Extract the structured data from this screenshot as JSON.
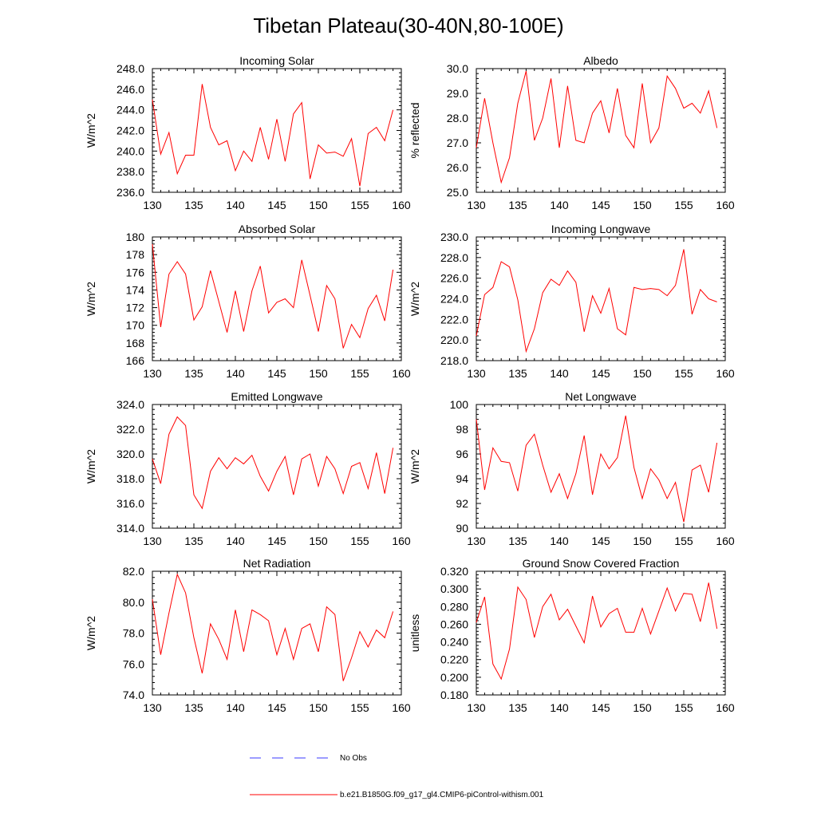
{
  "figure": {
    "title": "Tibetan Plateau(30-40N,80-100E)"
  },
  "colors": {
    "model_line": "#ff0000",
    "obs_line": "#3a3aff",
    "axis": "#000000"
  },
  "legend": {
    "entries": [
      {
        "label": "No Obs",
        "style": "dashed",
        "color": "#3a3aff"
      },
      {
        "label": "b.e21.B1850G.f09_g17_gl4.CMIP6-piControl-withism.001",
        "style": "solid",
        "color": "#ff0000"
      }
    ]
  },
  "chart_data": [
    {
      "type": "line",
      "title": "Incoming Solar",
      "ylabel": "W/m^2",
      "xlabel": "",
      "xlim": [
        130,
        160
      ],
      "ylim": [
        236,
        248
      ],
      "xticks": [
        "130",
        "135",
        "140",
        "145",
        "150",
        "155",
        "160"
      ],
      "yticks": [
        "236.0",
        "238.0",
        "240.0",
        "242.0",
        "244.0",
        "246.0",
        "248.0"
      ],
      "series": [
        {
          "name": "b.e21.B1850G.f09_g17_gl4.CMIP6-piControl-withism.001",
          "x": [
            130,
            131,
            132,
            133,
            134,
            135,
            136,
            137,
            138,
            139,
            140,
            141,
            142,
            143,
            144,
            145,
            146,
            147,
            148,
            149,
            150,
            151,
            152,
            153,
            154,
            155,
            156,
            157,
            158,
            159
          ],
          "values": [
            245.0,
            239.7,
            241.8,
            237.8,
            239.6,
            239.6,
            246.5,
            242.3,
            240.6,
            241.0,
            238.1,
            240.0,
            239.0,
            242.3,
            239.2,
            243.1,
            239.0,
            243.6,
            244.7,
            237.3,
            240.6,
            239.8,
            239.9,
            239.5,
            241.2,
            236.6,
            241.7,
            242.3,
            241.0,
            244.0
          ]
        }
      ]
    },
    {
      "type": "line",
      "title": "Albedo",
      "ylabel": "% reflected",
      "xlabel": "",
      "xlim": [
        130,
        160
      ],
      "ylim": [
        25,
        30
      ],
      "xticks": [
        "130",
        "135",
        "140",
        "145",
        "150",
        "155",
        "160"
      ],
      "yticks": [
        "25.0",
        "26.0",
        "27.0",
        "28.0",
        "29.0",
        "30.0"
      ],
      "series": [
        {
          "name": "b.e21.B1850G.f09_g17_gl4.CMIP6-piControl-withism.001",
          "x": [
            130,
            131,
            132,
            133,
            134,
            135,
            136,
            137,
            138,
            139,
            140,
            141,
            142,
            143,
            144,
            145,
            146,
            147,
            148,
            149,
            150,
            151,
            152,
            153,
            154,
            155,
            156,
            157,
            158,
            159
          ],
          "values": [
            26.8,
            28.8,
            27.0,
            25.4,
            26.4,
            28.6,
            29.9,
            27.1,
            28.0,
            29.6,
            26.8,
            29.3,
            27.1,
            27.0,
            28.2,
            28.7,
            27.4,
            29.2,
            27.3,
            26.8,
            29.4,
            27.0,
            27.6,
            29.7,
            29.2,
            28.4,
            28.6,
            28.2,
            29.1,
            27.6
          ]
        }
      ]
    },
    {
      "type": "line",
      "title": "Absorbed Solar",
      "ylabel": "W/m^2",
      "xlabel": "",
      "xlim": [
        130,
        160
      ],
      "ylim": [
        166,
        180
      ],
      "xticks": [
        "130",
        "135",
        "140",
        "145",
        "150",
        "155",
        "160"
      ],
      "yticks": [
        "166",
        "168",
        "170",
        "172",
        "174",
        "176",
        "178",
        "180"
      ],
      "series": [
        {
          "name": "b.e21.B1850G.f09_g17_gl4.CMIP6-piControl-withism.001",
          "x": [
            130,
            131,
            132,
            133,
            134,
            135,
            136,
            137,
            138,
            139,
            140,
            141,
            142,
            143,
            144,
            145,
            146,
            147,
            148,
            149,
            150,
            151,
            152,
            153,
            154,
            155,
            156,
            157,
            158,
            159
          ],
          "values": [
            179.2,
            169.8,
            175.8,
            177.2,
            175.8,
            170.6,
            172.1,
            176.2,
            172.7,
            169.2,
            173.9,
            169.3,
            173.9,
            176.7,
            171.4,
            172.6,
            173.0,
            172.0,
            177.4,
            173.4,
            169.3,
            174.5,
            173.0,
            167.4,
            170.1,
            168.6,
            171.9,
            173.4,
            170.5,
            176.3
          ]
        }
      ]
    },
    {
      "type": "line",
      "title": "Incoming Longwave",
      "ylabel": "W/m^2",
      "xlabel": "",
      "xlim": [
        130,
        160
      ],
      "ylim": [
        218,
        230
      ],
      "xticks": [
        "130",
        "135",
        "140",
        "145",
        "150",
        "155",
        "160"
      ],
      "yticks": [
        "218.0",
        "220.0",
        "222.0",
        "224.0",
        "226.0",
        "228.0",
        "230.0"
      ],
      "series": [
        {
          "name": "b.e21.B1850G.f09_g17_gl4.CMIP6-piControl-withism.001",
          "x": [
            130,
            131,
            132,
            133,
            134,
            135,
            136,
            137,
            138,
            139,
            140,
            141,
            142,
            143,
            144,
            145,
            146,
            147,
            148,
            149,
            150,
            151,
            152,
            153,
            154,
            155,
            156,
            157,
            158,
            159
          ],
          "values": [
            220.4,
            224.4,
            225.1,
            227.6,
            227.1,
            223.9,
            218.9,
            221.1,
            224.6,
            225.9,
            225.3,
            226.7,
            225.6,
            220.8,
            224.3,
            222.6,
            225.0,
            221.1,
            220.5,
            225.1,
            224.9,
            225.0,
            224.9,
            224.3,
            225.3,
            228.8,
            222.5,
            224.9,
            224.0,
            223.7
          ]
        }
      ]
    },
    {
      "type": "line",
      "title": "Emitted Longwave",
      "ylabel": "W/m^2",
      "xlabel": "",
      "xlim": [
        130,
        160
      ],
      "ylim": [
        314,
        324
      ],
      "xticks": [
        "130",
        "135",
        "140",
        "145",
        "150",
        "155",
        "160"
      ],
      "yticks": [
        "314.0",
        "316.0",
        "318.0",
        "320.0",
        "322.0",
        "324.0"
      ],
      "series": [
        {
          "name": "b.e21.B1850G.f09_g17_gl4.CMIP6-piControl-withism.001",
          "x": [
            130,
            131,
            132,
            133,
            134,
            135,
            136,
            137,
            138,
            139,
            140,
            141,
            142,
            143,
            144,
            145,
            146,
            147,
            148,
            149,
            150,
            151,
            152,
            153,
            154,
            155,
            156,
            157,
            158,
            159
          ],
          "values": [
            319.6,
            317.6,
            321.6,
            323.0,
            322.3,
            316.7,
            315.6,
            318.6,
            319.7,
            318.8,
            319.7,
            319.2,
            319.9,
            318.2,
            317.0,
            318.6,
            319.8,
            316.7,
            319.6,
            320.0,
            317.4,
            319.8,
            318.8,
            316.8,
            319.0,
            319.3,
            317.2,
            320.1,
            316.8,
            320.5
          ]
        }
      ]
    },
    {
      "type": "line",
      "title": "Net Longwave",
      "ylabel": "W/m^2",
      "xlabel": "",
      "xlim": [
        130,
        160
      ],
      "ylim": [
        90,
        100
      ],
      "xticks": [
        "130",
        "135",
        "140",
        "145",
        "150",
        "155",
        "160"
      ],
      "yticks": [
        "90",
        "92",
        "94",
        "96",
        "98",
        "100"
      ],
      "series": [
        {
          "name": "b.e21.B1850G.f09_g17_gl4.CMIP6-piControl-withism.001",
          "x": [
            130,
            131,
            132,
            133,
            134,
            135,
            136,
            137,
            138,
            139,
            140,
            141,
            142,
            143,
            144,
            145,
            146,
            147,
            148,
            149,
            150,
            151,
            152,
            153,
            154,
            155,
            156,
            157,
            158,
            159
          ],
          "values": [
            98.8,
            93.1,
            96.5,
            95.4,
            95.3,
            93.0,
            96.7,
            97.6,
            95.1,
            92.9,
            94.4,
            92.4,
            94.4,
            97.5,
            92.7,
            96.0,
            94.8,
            95.7,
            99.1,
            94.9,
            92.4,
            94.8,
            93.9,
            92.4,
            93.7,
            90.5,
            94.7,
            95.1,
            92.9,
            96.9
          ]
        }
      ]
    },
    {
      "type": "line",
      "title": "Net Radiation",
      "ylabel": "W/m^2",
      "xlabel": "",
      "xlim": [
        130,
        160
      ],
      "ylim": [
        74,
        82
      ],
      "xticks": [
        "130",
        "135",
        "140",
        "145",
        "150",
        "155",
        "160"
      ],
      "yticks": [
        "74.0",
        "76.0",
        "78.0",
        "80.0",
        "82.0"
      ],
      "series": [
        {
          "name": "b.e21.B1850G.f09_g17_gl4.CMIP6-piControl-withism.001",
          "x": [
            130,
            131,
            132,
            133,
            134,
            135,
            136,
            137,
            138,
            139,
            140,
            141,
            142,
            143,
            144,
            145,
            146,
            147,
            148,
            149,
            150,
            151,
            152,
            153,
            154,
            155,
            156,
            157,
            158,
            159
          ],
          "values": [
            80.2,
            76.6,
            79.3,
            81.8,
            80.6,
            77.7,
            75.4,
            78.6,
            77.6,
            76.3,
            79.5,
            76.8,
            79.5,
            79.2,
            78.8,
            76.6,
            78.3,
            76.3,
            78.3,
            78.6,
            76.8,
            79.7,
            79.2,
            74.9,
            76.4,
            78.1,
            77.1,
            78.2,
            77.7,
            79.4
          ]
        }
      ]
    },
    {
      "type": "line",
      "title": "Ground Snow Covered Fraction",
      "ylabel": "unitless",
      "xlabel": "",
      "xlim": [
        130,
        160
      ],
      "ylim": [
        0.18,
        0.32
      ],
      "xticks": [
        "130",
        "135",
        "140",
        "145",
        "150",
        "155",
        "160"
      ],
      "yticks": [
        "0.180",
        "0.200",
        "0.220",
        "0.240",
        "0.260",
        "0.280",
        "0.300",
        "0.320"
      ],
      "series": [
        {
          "name": "b.e21.B1850G.f09_g17_gl4.CMIP6-piControl-withism.001",
          "x": [
            130,
            131,
            132,
            133,
            134,
            135,
            136,
            137,
            138,
            139,
            140,
            141,
            142,
            143,
            144,
            145,
            146,
            147,
            148,
            149,
            150,
            151,
            152,
            153,
            154,
            155,
            156,
            157,
            158,
            159
          ],
          "values": [
            0.262,
            0.291,
            0.215,
            0.198,
            0.232,
            0.302,
            0.288,
            0.245,
            0.28,
            0.294,
            0.265,
            0.277,
            0.258,
            0.239,
            0.292,
            0.257,
            0.272,
            0.278,
            0.251,
            0.251,
            0.278,
            0.249,
            0.275,
            0.301,
            0.275,
            0.295,
            0.294,
            0.263,
            0.307,
            0.255
          ]
        }
      ]
    }
  ]
}
